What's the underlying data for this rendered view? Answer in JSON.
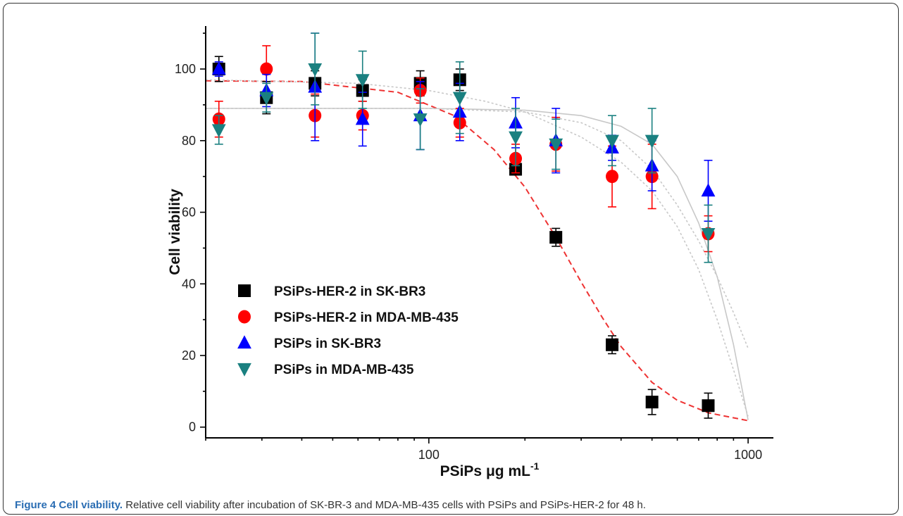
{
  "caption": {
    "label": "Figure 4 Cell viability.",
    "text": " Relative cell viability after incubation of SK-BR-3 and MDA-MB-435 cells with PSiPs and PSiPs-HER-2 for 48 h."
  },
  "chart_data": {
    "type": "scatter",
    "xlabel": "PSiPs μg mL",
    "xlabel_superscript": "-1",
    "ylabel": "Cell viability",
    "xscale": "log",
    "xlim": [
      20,
      1200
    ],
    "ylim": [
      -3,
      112
    ],
    "xticks": [
      100,
      1000
    ],
    "xtick_labels": [
      "100",
      "1000"
    ],
    "yticks": [
      0,
      20,
      40,
      60,
      80,
      100
    ],
    "ytick_labels": [
      "0",
      "20",
      "40",
      "60",
      "80",
      "100"
    ],
    "legend_position": "lower-left",
    "series": [
      {
        "name": "PSiPs-HER-2 in SK-BR3",
        "marker": "square",
        "color": "#000000",
        "x": [
          22,
          31,
          44,
          62,
          94,
          125,
          187,
          250,
          375,
          500,
          750
        ],
        "y": [
          100,
          92,
          96,
          94,
          96,
          97,
          72,
          53,
          23,
          7,
          6
        ],
        "err": [
          3.5,
          4.5,
          3.5,
          3,
          3.5,
          3,
          1.5,
          2.5,
          2.5,
          3.5,
          3.5
        ]
      },
      {
        "name": "PSiPs-HER-2 in MDA-MB-435",
        "marker": "circle",
        "color": "#ff0000",
        "x": [
          22,
          31,
          44,
          62,
          94,
          125,
          187,
          250,
          375,
          500,
          750
        ],
        "y": [
          86,
          100,
          87,
          87,
          94,
          85,
          75,
          79,
          70,
          70,
          54
        ],
        "err": [
          5,
          6.5,
          6,
          4,
          3.5,
          4,
          4,
          7.5,
          8.5,
          9,
          5
        ]
      },
      {
        "name": "PSiPs in SK-BR3",
        "marker": "triangle-up",
        "color": "#0000ff",
        "x": [
          22,
          31,
          44,
          62,
          94,
          125,
          187,
          250,
          375,
          500,
          750
        ],
        "y": [
          100,
          94,
          95,
          86,
          87,
          88,
          85,
          80,
          78,
          73,
          66
        ],
        "err": [
          2,
          4.5,
          15,
          7.5,
          9.5,
          8,
          7,
          9,
          3.5,
          7,
          8.5
        ]
      },
      {
        "name": "PSiPs in MDA-MB-435",
        "marker": "triangle-down",
        "color": "#1a8080",
        "x": [
          22,
          31,
          44,
          62,
          94,
          125,
          187,
          250,
          375,
          500,
          750
        ],
        "y": [
          83,
          92,
          100,
          97,
          86,
          92,
          81,
          79,
          80,
          80,
          54
        ],
        "err": [
          4,
          4,
          10,
          8,
          8.5,
          10,
          8,
          7,
          7,
          9,
          8
        ]
      }
    ],
    "fits": [
      {
        "color": "#ee3333",
        "dash": true,
        "x": [
          20,
          40,
          80,
          120,
          160,
          200,
          250,
          300,
          350,
          400,
          500,
          600,
          750,
          1000
        ],
        "y": [
          96.7,
          96.5,
          93.5,
          87,
          77.5,
          67,
          53,
          40.5,
          30.5,
          22.5,
          12.5,
          7.5,
          4,
          1.8
        ]
      },
      {
        "color": "#c8c8c8",
        "dash": false,
        "x": [
          20,
          100,
          200,
          300,
          400,
          500,
          600,
          700,
          800,
          900,
          1000
        ],
        "y": [
          89,
          89,
          88.5,
          87,
          84,
          79,
          70,
          57,
          42,
          23,
          2
        ]
      },
      {
        "color": "#c8c8c8",
        "dash": true,
        "x": [
          20,
          100,
          200,
          300,
          400,
          500,
          600,
          700,
          800,
          900,
          1000
        ],
        "y": [
          89,
          89,
          88,
          85,
          80,
          72,
          62,
          52,
          42,
          32,
          22
        ]
      },
      {
        "color": "#c8c8c8",
        "dash": true,
        "x": [
          20,
          60,
          100,
          150,
          200,
          300,
          400,
          500,
          600,
          700,
          800,
          900,
          1000
        ],
        "y": [
          97,
          96,
          94,
          91,
          88,
          81,
          74,
          66,
          56,
          44,
          30,
          16,
          3
        ]
      }
    ]
  }
}
